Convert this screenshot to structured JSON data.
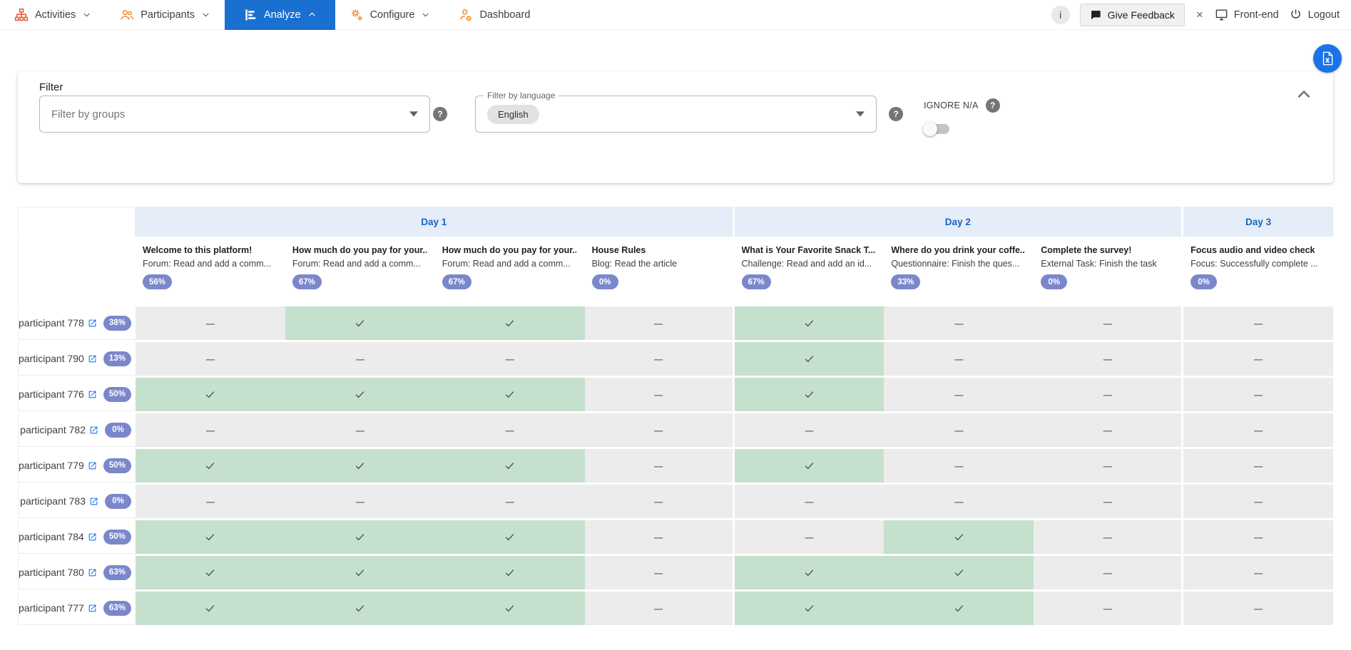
{
  "nav": {
    "items": [
      {
        "label": "Activities",
        "icon": "org-chart-icon",
        "chevron": "down",
        "active": false
      },
      {
        "label": "Participants",
        "icon": "people-icon",
        "chevron": "down",
        "active": false
      },
      {
        "label": "Analyze",
        "icon": "bar-chart-icon",
        "chevron": "up",
        "active": true
      },
      {
        "label": "Configure",
        "icon": "gears-icon",
        "chevron": "down",
        "active": false
      },
      {
        "label": "Dashboard",
        "icon": "person-clock-icon",
        "chevron": null,
        "active": false
      }
    ],
    "right": {
      "info_glyph": "i",
      "feedback_label": "Give Feedback",
      "close_glyph": "×",
      "frontend_label": "Front-end",
      "logout_label": "Logout"
    }
  },
  "export_button": {
    "icon": "excel-file-icon",
    "color": "#1a73e8"
  },
  "filter": {
    "title": "Filter",
    "groups_placeholder": "Filter by groups",
    "help_glyph": "?",
    "language_label": "Filter by language",
    "language_value": "English",
    "ignore_na_label": "IGNORE N/A",
    "ignore_na_on": false
  },
  "table": {
    "colors": {
      "done_bg": "#c5e0cc",
      "not_done_bg": "#ececec",
      "day_header_bg": "#e4edf8",
      "day_header_text": "#1766c2",
      "badge_bg": "#7b87cb"
    },
    "day_groups": [
      {
        "label": "Day 1",
        "span": 4
      },
      {
        "label": "Day 2",
        "span": 3
      },
      {
        "label": "Day 3",
        "span": 1
      }
    ],
    "columns": [
      {
        "title": "Welcome to this platform!",
        "subtitle": "Forum: Read and add a comm...",
        "completion": "56%"
      },
      {
        "title": "How much do you pay for your...",
        "subtitle": "Forum: Read and add a comm...",
        "completion": "67%"
      },
      {
        "title": "How much do you pay for your...",
        "subtitle": "Forum: Read and add a comm...",
        "completion": "67%"
      },
      {
        "title": "House Rules",
        "subtitle": "Blog: Read the article",
        "completion": "0%"
      },
      {
        "title": "What is Your Favorite Snack T...",
        "subtitle": "Challenge: Read and add an id...",
        "completion": "67%"
      },
      {
        "title": "Where do you drink your coffe...",
        "subtitle": "Questionnaire: Finish the ques...",
        "completion": "33%"
      },
      {
        "title": "Complete the survey!",
        "subtitle": "External Task: Finish the task",
        "completion": "0%"
      },
      {
        "title": "Focus audio and video check",
        "subtitle": "Focus: Successfully complete ...",
        "completion": "0%"
      }
    ],
    "rows": [
      {
        "name": "participant 778",
        "completion": "38%",
        "cells": [
          0,
          1,
          1,
          0,
          1,
          0,
          0,
          0
        ]
      },
      {
        "name": "participant 790",
        "completion": "13%",
        "cells": [
          0,
          0,
          0,
          0,
          1,
          0,
          0,
          0
        ]
      },
      {
        "name": "participant 776",
        "completion": "50%",
        "cells": [
          1,
          1,
          1,
          0,
          1,
          0,
          0,
          0
        ]
      },
      {
        "name": "participant 782",
        "completion": "0%",
        "cells": [
          0,
          0,
          0,
          0,
          0,
          0,
          0,
          0
        ]
      },
      {
        "name": "participant 779",
        "completion": "50%",
        "cells": [
          1,
          1,
          1,
          0,
          1,
          0,
          0,
          0
        ]
      },
      {
        "name": "participant 783",
        "completion": "0%",
        "cells": [
          0,
          0,
          0,
          0,
          0,
          0,
          0,
          0
        ]
      },
      {
        "name": "participant 784",
        "completion": "50%",
        "cells": [
          1,
          1,
          1,
          0,
          0,
          1,
          0,
          0
        ]
      },
      {
        "name": "participant 780",
        "completion": "63%",
        "cells": [
          1,
          1,
          1,
          0,
          1,
          1,
          0,
          0
        ]
      },
      {
        "name": "participant 777",
        "completion": "63%",
        "cells": [
          1,
          1,
          1,
          0,
          1,
          1,
          0,
          0
        ]
      }
    ]
  }
}
